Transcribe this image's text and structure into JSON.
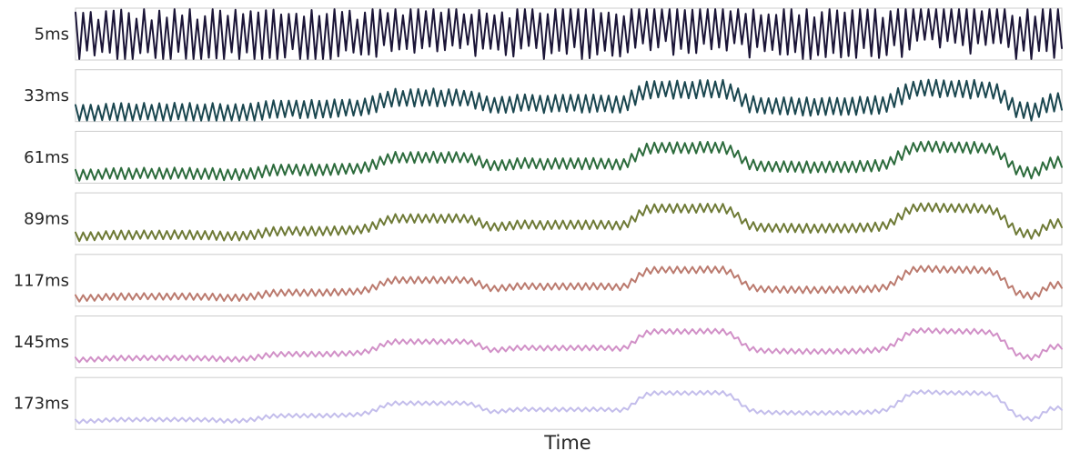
{
  "chart_data": {
    "type": "line",
    "xlabel": "Time",
    "ylabel": "",
    "grid": false,
    "series": [
      {
        "name": "5ms",
        "color": "#1b1537"
      },
      {
        "name": "33ms",
        "color": "#1a464f"
      },
      {
        "name": "61ms",
        "color": "#2c6b3c"
      },
      {
        "name": "89ms",
        "color": "#6e7a36"
      },
      {
        "name": "117ms",
        "color": "#bb7a6e"
      },
      {
        "name": "145ms",
        "color": "#d190c7"
      },
      {
        "name": "173ms",
        "color": "#c3bdeb"
      }
    ]
  }
}
